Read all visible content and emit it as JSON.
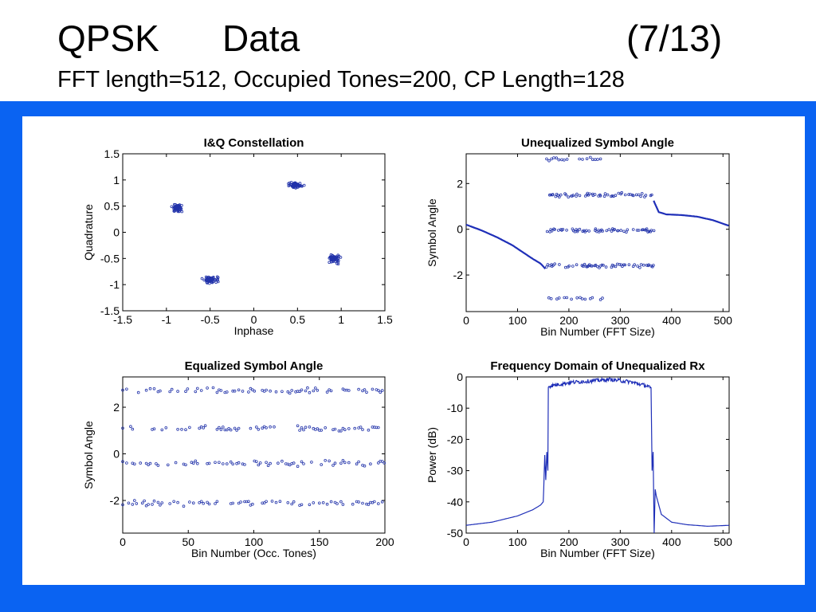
{
  "slide": {
    "title_left": "QPSK",
    "title_mid": "Data",
    "title_right": "(7/13)",
    "subtitle": "FFT length=512, Occupied Tones=200, CP Length=128"
  },
  "colors": {
    "frame": "#0a63f2",
    "trace": "#1f2fb8",
    "marker": "#2233aa"
  },
  "chart_data": [
    {
      "id": "iq",
      "type": "scatter",
      "title": "I&Q Constellation",
      "xlabel": "Inphase",
      "ylabel": "Quadrature",
      "xlim": [
        -1.5,
        1.5
      ],
      "ylim": [
        -1.5,
        1.5
      ],
      "xticks": [
        -1.5,
        -1,
        -0.5,
        0,
        0.5,
        1,
        1.5
      ],
      "yticks": [
        -1.5,
        -1,
        -0.5,
        0,
        0.5,
        1,
        1.5
      ],
      "clusters": [
        {
          "center": [
            -0.88,
            0.46
          ],
          "spread": [
            0.07,
            0.07
          ],
          "count": 60
        },
        {
          "center": [
            0.48,
            0.9
          ],
          "spread": [
            0.08,
            0.05
          ],
          "count": 55
        },
        {
          "center": [
            -0.5,
            -0.9
          ],
          "spread": [
            0.09,
            0.06
          ],
          "count": 60
        },
        {
          "center": [
            0.92,
            -0.5
          ],
          "spread": [
            0.07,
            0.09
          ],
          "count": 55
        }
      ]
    },
    {
      "id": "unequalized",
      "type": "scatter",
      "title": "Unequalized Symbol Angle",
      "xlabel": "Bin Number (FFT Size)",
      "ylabel": "Symbol Angle",
      "xlim": [
        0,
        512
      ],
      "ylim": [
        -3.6,
        3.3
      ],
      "xticks": [
        0,
        100,
        200,
        300,
        400,
        500
      ],
      "yticks": [
        -2,
        0,
        2
      ],
      "curve_left": {
        "x": [
          0,
          30,
          60,
          90,
          110,
          130,
          145,
          155
        ],
        "y": [
          0.2,
          -0.05,
          -0.35,
          -0.7,
          -1.0,
          -1.3,
          -1.5,
          -1.75
        ]
      },
      "curve_right": {
        "x": [
          365,
          375,
          390,
          420,
          450,
          480,
          512
        ],
        "y": [
          1.25,
          0.75,
          0.65,
          0.62,
          0.55,
          0.4,
          0.15
        ]
      },
      "occupied_range": [
        155,
        365
      ],
      "levels": [
        3.05,
        1.5,
        -0.05,
        -1.6,
        -3.05
      ],
      "top_bottom_range": [
        155,
        270
      ]
    },
    {
      "id": "equalized",
      "type": "scatter",
      "title": "Equalized Symbol Angle",
      "xlabel": "Bin Number (Occ. Tones)",
      "ylabel": "Symbol Angle",
      "xlim": [
        0,
        200
      ],
      "ylim": [
        -3.4,
        3.3
      ],
      "xticks": [
        0,
        50,
        100,
        150,
        200
      ],
      "yticks": [
        -2,
        0,
        2
      ],
      "levels": [
        2.7,
        1.1,
        -0.4,
        -2.1
      ]
    },
    {
      "id": "spectrum",
      "type": "line",
      "title": "Frequency Domain of Unequalized Rx",
      "xlabel": "Bin Number (FFT Size)",
      "ylabel": "Power (dB)",
      "xlim": [
        0,
        512
      ],
      "ylim": [
        -50,
        0
      ],
      "xticks": [
        0,
        100,
        200,
        300,
        400,
        500
      ],
      "yticks": [
        0,
        -10,
        -20,
        -30,
        -40,
        -50
      ],
      "floor": {
        "x": [
          0,
          50,
          100,
          130,
          145,
          150
        ],
        "y": [
          -47.5,
          -46.5,
          -44.5,
          -42.5,
          -41.0,
          -40.0
        ]
      },
      "band": {
        "x": [
          160,
          200,
          250,
          280,
          320,
          355,
          360
        ],
        "y": [
          -3.0,
          -1.8,
          -1.2,
          -0.8,
          -1.6,
          -3.0,
          -4.0
        ]
      },
      "floor_right": {
        "x": [
          370,
          380,
          400,
          430,
          470,
          512
        ],
        "y": [
          -38,
          -44,
          -46.5,
          -47.3,
          -47.8,
          -47.5
        ]
      }
    }
  ]
}
